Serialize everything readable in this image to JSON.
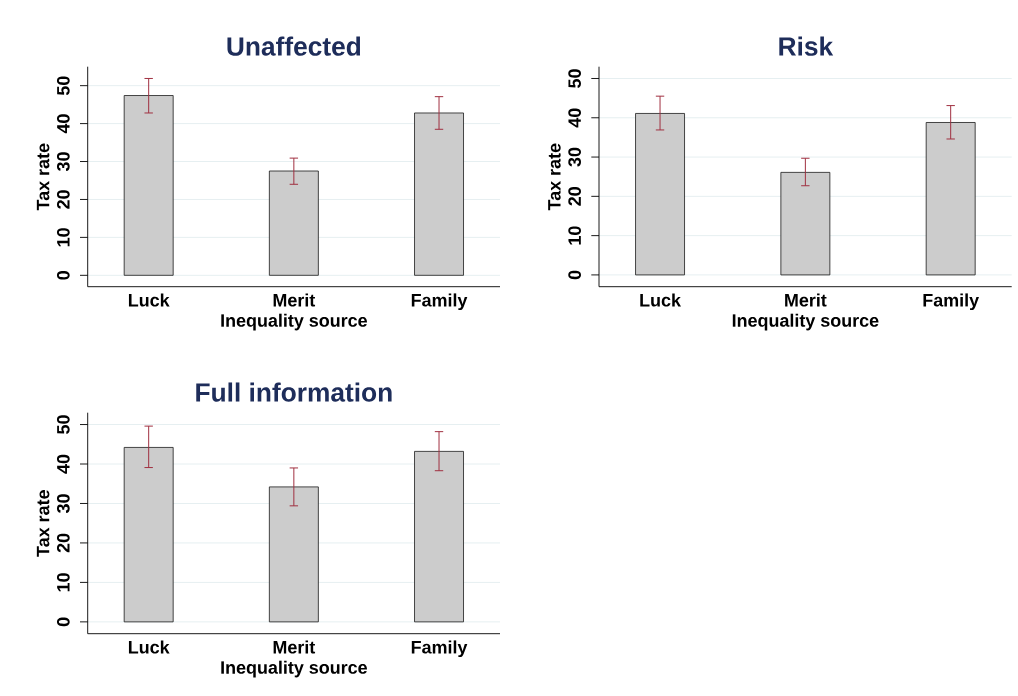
{
  "chart_data": [
    {
      "type": "bar",
      "title": "Unaffected",
      "xlabel": "Inequality source",
      "ylabel": "Tax rate",
      "categories": [
        "Luck",
        "Merit",
        "Family"
      ],
      "values": [
        47.4,
        27.5,
        42.8
      ],
      "errors": [
        [
          42.8,
          51.9
        ],
        [
          24.0,
          30.9
        ],
        [
          38.5,
          47.1
        ]
      ],
      "color": "#cccccc",
      "ylim": [
        -3,
        55
      ],
      "yticks": [
        0,
        10,
        20,
        30,
        40,
        50
      ],
      "grid": "y"
    },
    {
      "type": "bar",
      "title": "Risk",
      "xlabel": "Inequality source",
      "ylabel": "Tax rate",
      "categories": [
        "Luck",
        "Merit",
        "Family"
      ],
      "values": [
        41.1,
        26.1,
        38.8
      ],
      "errors": [
        [
          36.9,
          45.5
        ],
        [
          22.7,
          29.7
        ],
        [
          34.6,
          43.1
        ]
      ],
      "color": "#cccccc",
      "ylim": [
        -3,
        53
      ],
      "yticks": [
        0,
        10,
        20,
        30,
        40,
        50
      ],
      "grid": "y"
    },
    {
      "type": "bar",
      "title": "Full information",
      "xlabel": "Inequality source",
      "ylabel": "Tax rate",
      "categories": [
        "Luck",
        "Merit",
        "Family"
      ],
      "values": [
        44.2,
        34.2,
        43.2
      ],
      "errors": [
        [
          39.1,
          49.6
        ],
        [
          29.4,
          39.0
        ],
        [
          38.3,
          48.2
        ]
      ],
      "color": "#cccccc",
      "ylim": [
        -3,
        53
      ],
      "yticks": [
        0,
        10,
        20,
        30,
        40,
        50
      ],
      "grid": "y"
    }
  ]
}
